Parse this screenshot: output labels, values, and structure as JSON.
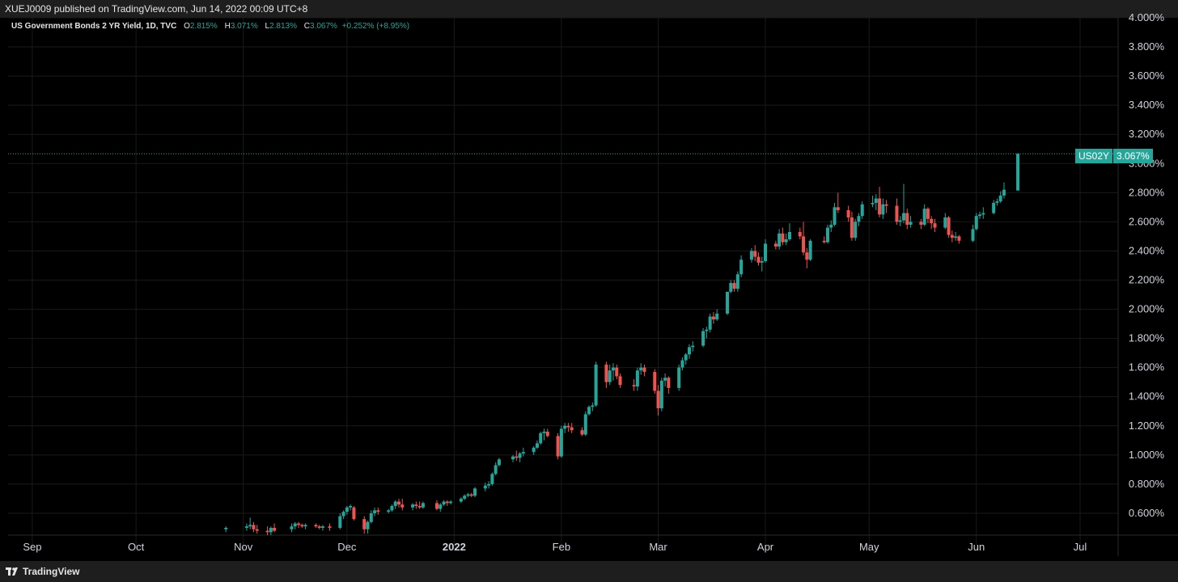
{
  "header": {
    "published": "XUEJ0009 published on TradingView.com, Jun 14, 2022 00:09 UTC+8"
  },
  "legend": {
    "title": "US Government Bonds 2 YR Yield, 1D, TVC",
    "open_label": "O",
    "open": "2.815%",
    "high_label": "H",
    "high": "3.071%",
    "low_label": "L",
    "low": "2.813%",
    "close_label": "C",
    "close": "3.067%",
    "change": "+0.252% (+8.95%)"
  },
  "price_tag": {
    "symbol": "US02Y",
    "value": "3.067%"
  },
  "footer": {
    "brand": "TradingView"
  },
  "colors": {
    "up": "#26a69a",
    "down": "#ef5350",
    "background": "#000000",
    "grid": "#1a1a1a"
  },
  "chart_data": {
    "type": "candlestick",
    "y_unit": "%",
    "ylim": [
      0.45,
      4.0
    ],
    "y_ticks": [
      "0.600%",
      "0.800%",
      "1.000%",
      "1.200%",
      "1.400%",
      "1.600%",
      "1.800%",
      "2.000%",
      "2.200%",
      "2.400%",
      "2.600%",
      "2.800%",
      "3.000%",
      "3.200%",
      "3.400%",
      "3.600%",
      "3.800%",
      "4.000%"
    ],
    "x_ticks": [
      "Sep",
      "Oct",
      "Nov",
      "Dec",
      "2022",
      "Feb",
      "Mar",
      "Apr",
      "May",
      "Jun",
      "Jul"
    ],
    "x_range": [
      "2021-08-25",
      "2022-07-12"
    ],
    "last_price": 3.067,
    "grid": true,
    "candles": [
      {
        "date": "2021-10-27",
        "o": 0.49,
        "h": 0.51,
        "l": 0.47,
        "c": 0.5
      },
      {
        "date": "2021-11-02",
        "o": 0.5,
        "h": 0.53,
        "l": 0.48,
        "c": 0.51
      },
      {
        "date": "2021-11-03",
        "o": 0.51,
        "h": 0.57,
        "l": 0.49,
        "c": 0.52
      },
      {
        "date": "2021-11-04",
        "o": 0.52,
        "h": 0.54,
        "l": 0.47,
        "c": 0.49
      },
      {
        "date": "2021-11-05",
        "o": 0.49,
        "h": 0.52,
        "l": 0.46,
        "c": 0.48
      },
      {
        "date": "2021-11-08",
        "o": 0.48,
        "h": 0.51,
        "l": 0.45,
        "c": 0.47
      },
      {
        "date": "2021-11-09",
        "o": 0.47,
        "h": 0.51,
        "l": 0.44,
        "c": 0.5
      },
      {
        "date": "2021-11-10",
        "o": 0.5,
        "h": 0.53,
        "l": 0.47,
        "c": 0.48
      },
      {
        "date": "2021-11-15",
        "o": 0.49,
        "h": 0.53,
        "l": 0.47,
        "c": 0.51
      },
      {
        "date": "2021-11-16",
        "o": 0.51,
        "h": 0.54,
        "l": 0.49,
        "c": 0.53
      },
      {
        "date": "2021-11-17",
        "o": 0.53,
        "h": 0.54,
        "l": 0.5,
        "c": 0.52
      },
      {
        "date": "2021-11-18",
        "o": 0.52,
        "h": 0.53,
        "l": 0.5,
        "c": 0.51
      },
      {
        "date": "2021-11-19",
        "o": 0.51,
        "h": 0.53,
        "l": 0.49,
        "c": 0.52
      },
      {
        "date": "2021-11-22",
        "o": 0.52,
        "h": 0.53,
        "l": 0.5,
        "c": 0.51
      },
      {
        "date": "2021-11-23",
        "o": 0.51,
        "h": 0.52,
        "l": 0.49,
        "c": 0.5
      },
      {
        "date": "2021-11-24",
        "o": 0.5,
        "h": 0.52,
        "l": 0.48,
        "c": 0.51
      },
      {
        "date": "2021-11-26",
        "o": 0.51,
        "h": 0.53,
        "l": 0.48,
        "c": 0.5
      },
      {
        "date": "2021-11-29",
        "o": 0.5,
        "h": 0.6,
        "l": 0.49,
        "c": 0.58
      },
      {
        "date": "2021-11-30",
        "o": 0.58,
        "h": 0.62,
        "l": 0.56,
        "c": 0.61
      },
      {
        "date": "2021-12-01",
        "o": 0.61,
        "h": 0.65,
        "l": 0.59,
        "c": 0.64
      },
      {
        "date": "2021-12-02",
        "o": 0.64,
        "h": 0.66,
        "l": 0.62,
        "c": 0.65
      },
      {
        "date": "2021-12-03",
        "o": 0.64,
        "h": 0.65,
        "l": 0.55,
        "c": 0.56
      },
      {
        "date": "2021-12-06",
        "o": 0.56,
        "h": 0.58,
        "l": 0.46,
        "c": 0.49
      },
      {
        "date": "2021-12-07",
        "o": 0.49,
        "h": 0.55,
        "l": 0.46,
        "c": 0.54
      },
      {
        "date": "2021-12-08",
        "o": 0.54,
        "h": 0.62,
        "l": 0.53,
        "c": 0.6
      },
      {
        "date": "2021-12-09",
        "o": 0.6,
        "h": 0.64,
        "l": 0.58,
        "c": 0.62
      },
      {
        "date": "2021-12-10",
        "o": 0.62,
        "h": 0.64,
        "l": 0.59,
        "c": 0.61
      },
      {
        "date": "2021-12-13",
        "o": 0.61,
        "h": 0.63,
        "l": 0.6,
        "c": 0.62
      },
      {
        "date": "2021-12-14",
        "o": 0.62,
        "h": 0.66,
        "l": 0.61,
        "c": 0.65
      },
      {
        "date": "2021-12-15",
        "o": 0.65,
        "h": 0.69,
        "l": 0.63,
        "c": 0.68
      },
      {
        "date": "2021-12-16",
        "o": 0.68,
        "h": 0.7,
        "l": 0.64,
        "c": 0.66
      },
      {
        "date": "2021-12-17",
        "o": 0.66,
        "h": 0.7,
        "l": 0.62,
        "c": 0.64
      },
      {
        "date": "2021-12-20",
        "o": 0.64,
        "h": 0.67,
        "l": 0.62,
        "c": 0.66
      },
      {
        "date": "2021-12-21",
        "o": 0.66,
        "h": 0.68,
        "l": 0.63,
        "c": 0.65
      },
      {
        "date": "2021-12-22",
        "o": 0.65,
        "h": 0.68,
        "l": 0.63,
        "c": 0.64
      },
      {
        "date": "2021-12-23",
        "o": 0.64,
        "h": 0.68,
        "l": 0.63,
        "c": 0.67
      },
      {
        "date": "2021-12-27",
        "o": 0.67,
        "h": 0.69,
        "l": 0.62,
        "c": 0.63
      },
      {
        "date": "2021-12-28",
        "o": 0.63,
        "h": 0.67,
        "l": 0.61,
        "c": 0.66
      },
      {
        "date": "2021-12-29",
        "o": 0.66,
        "h": 0.69,
        "l": 0.65,
        "c": 0.68
      },
      {
        "date": "2021-12-30",
        "o": 0.68,
        "h": 0.69,
        "l": 0.65,
        "c": 0.67
      },
      {
        "date": "2021-12-31",
        "o": 0.67,
        "h": 0.69,
        "l": 0.66,
        "c": 0.68
      },
      {
        "date": "2022-01-03",
        "o": 0.68,
        "h": 0.71,
        "l": 0.67,
        "c": 0.7
      },
      {
        "date": "2022-01-04",
        "o": 0.7,
        "h": 0.73,
        "l": 0.69,
        "c": 0.72
      },
      {
        "date": "2022-01-05",
        "o": 0.72,
        "h": 0.74,
        "l": 0.71,
        "c": 0.73
      },
      {
        "date": "2022-01-06",
        "o": 0.73,
        "h": 0.74,
        "l": 0.71,
        "c": 0.72
      },
      {
        "date": "2022-01-07",
        "o": 0.72,
        "h": 0.78,
        "l": 0.71,
        "c": 0.77
      },
      {
        "date": "2022-01-10",
        "o": 0.77,
        "h": 0.81,
        "l": 0.75,
        "c": 0.79
      },
      {
        "date": "2022-01-11",
        "o": 0.79,
        "h": 0.82,
        "l": 0.77,
        "c": 0.8
      },
      {
        "date": "2022-01-12",
        "o": 0.8,
        "h": 0.88,
        "l": 0.79,
        "c": 0.87
      },
      {
        "date": "2022-01-13",
        "o": 0.87,
        "h": 0.95,
        "l": 0.86,
        "c": 0.93
      },
      {
        "date": "2022-01-14",
        "o": 0.93,
        "h": 0.98,
        "l": 0.92,
        "c": 0.97
      },
      {
        "date": "2022-01-18",
        "o": 0.97,
        "h": 1.0,
        "l": 0.95,
        "c": 0.99
      },
      {
        "date": "2022-01-19",
        "o": 0.99,
        "h": 1.03,
        "l": 0.96,
        "c": 0.98
      },
      {
        "date": "2022-01-20",
        "o": 0.98,
        "h": 1.02,
        "l": 0.95,
        "c": 1.01
      },
      {
        "date": "2022-01-21",
        "o": 1.01,
        "h": 1.05,
        "l": 0.99,
        "c": 1.02
      },
      {
        "date": "2022-01-24",
        "o": 1.02,
        "h": 1.06,
        "l": 1.0,
        "c": 1.05
      },
      {
        "date": "2022-01-25",
        "o": 1.05,
        "h": 1.1,
        "l": 1.04,
        "c": 1.08
      },
      {
        "date": "2022-01-26",
        "o": 1.08,
        "h": 1.16,
        "l": 1.07,
        "c": 1.15
      },
      {
        "date": "2022-01-27",
        "o": 1.15,
        "h": 1.18,
        "l": 1.1,
        "c": 1.16
      },
      {
        "date": "2022-01-28",
        "o": 1.16,
        "h": 1.18,
        "l": 1.12,
        "c": 1.13
      },
      {
        "date": "2022-01-31",
        "o": 1.13,
        "h": 1.15,
        "l": 0.97,
        "c": 0.99
      },
      {
        "date": "2022-02-01",
        "o": 0.99,
        "h": 1.2,
        "l": 0.98,
        "c": 1.18
      },
      {
        "date": "2022-02-02",
        "o": 1.18,
        "h": 1.22,
        "l": 1.15,
        "c": 1.2
      },
      {
        "date": "2022-02-03",
        "o": 1.2,
        "h": 1.22,
        "l": 1.16,
        "c": 1.19
      },
      {
        "date": "2022-02-04",
        "o": 1.19,
        "h": 1.22,
        "l": 1.15,
        "c": 1.17
      },
      {
        "date": "2022-02-07",
        "o": 1.17,
        "h": 1.19,
        "l": 1.13,
        "c": 1.14
      },
      {
        "date": "2022-02-08",
        "o": 1.14,
        "h": 1.3,
        "l": 1.13,
        "c": 1.28
      },
      {
        "date": "2022-02-09",
        "o": 1.28,
        "h": 1.34,
        "l": 1.27,
        "c": 1.33
      },
      {
        "date": "2022-02-10",
        "o": 1.33,
        "h": 1.36,
        "l": 1.3,
        "c": 1.34
      },
      {
        "date": "2022-02-11",
        "o": 1.34,
        "h": 1.64,
        "l": 1.33,
        "c": 1.62
      },
      {
        "date": "2022-02-14",
        "o": 1.62,
        "h": 1.64,
        "l": 1.46,
        "c": 1.5
      },
      {
        "date": "2022-02-15",
        "o": 1.5,
        "h": 1.62,
        "l": 1.48,
        "c": 1.58
      },
      {
        "date": "2022-02-16",
        "o": 1.58,
        "h": 1.63,
        "l": 1.51,
        "c": 1.6
      },
      {
        "date": "2022-02-17",
        "o": 1.6,
        "h": 1.62,
        "l": 1.52,
        "c": 1.54
      },
      {
        "date": "2022-02-18",
        "o": 1.54,
        "h": 1.56,
        "l": 1.46,
        "c": 1.48
      },
      {
        "date": "2022-02-22",
        "o": 1.48,
        "h": 1.52,
        "l": 1.44,
        "c": 1.47
      },
      {
        "date": "2022-02-23",
        "o": 1.47,
        "h": 1.6,
        "l": 1.44,
        "c": 1.58
      },
      {
        "date": "2022-02-24",
        "o": 1.58,
        "h": 1.63,
        "l": 1.55,
        "c": 1.6
      },
      {
        "date": "2022-02-25",
        "o": 1.6,
        "h": 1.62,
        "l": 1.54,
        "c": 1.57
      },
      {
        "date": "2022-02-28",
        "o": 1.57,
        "h": 1.59,
        "l": 1.42,
        "c": 1.44
      },
      {
        "date": "2022-03-01",
        "o": 1.44,
        "h": 1.48,
        "l": 1.27,
        "c": 1.32
      },
      {
        "date": "2022-03-02",
        "o": 1.32,
        "h": 1.53,
        "l": 1.3,
        "c": 1.51
      },
      {
        "date": "2022-03-03",
        "o": 1.51,
        "h": 1.56,
        "l": 1.47,
        "c": 1.53
      },
      {
        "date": "2022-03-04",
        "o": 1.53,
        "h": 1.54,
        "l": 1.42,
        "c": 1.46
      },
      {
        "date": "2022-03-07",
        "o": 1.46,
        "h": 1.62,
        "l": 1.44,
        "c": 1.6
      },
      {
        "date": "2022-03-08",
        "o": 1.6,
        "h": 1.67,
        "l": 1.58,
        "c": 1.65
      },
      {
        "date": "2022-03-09",
        "o": 1.65,
        "h": 1.7,
        "l": 1.62,
        "c": 1.69
      },
      {
        "date": "2022-03-10",
        "o": 1.69,
        "h": 1.76,
        "l": 1.66,
        "c": 1.74
      },
      {
        "date": "2022-03-11",
        "o": 1.74,
        "h": 1.78,
        "l": 1.71,
        "c": 1.75
      },
      {
        "date": "2022-03-14",
        "o": 1.75,
        "h": 1.87,
        "l": 1.74,
        "c": 1.85
      },
      {
        "date": "2022-03-15",
        "o": 1.85,
        "h": 1.88,
        "l": 1.8,
        "c": 1.86
      },
      {
        "date": "2022-03-16",
        "o": 1.86,
        "h": 1.97,
        "l": 1.84,
        "c": 1.95
      },
      {
        "date": "2022-03-17",
        "o": 1.95,
        "h": 1.98,
        "l": 1.9,
        "c": 1.93
      },
      {
        "date": "2022-03-18",
        "o": 1.93,
        "h": 2.0,
        "l": 1.92,
        "c": 1.97
      },
      {
        "date": "2022-03-21",
        "o": 1.97,
        "h": 2.12,
        "l": 1.96,
        "c": 2.12
      },
      {
        "date": "2022-03-22",
        "o": 2.12,
        "h": 2.2,
        "l": 2.11,
        "c": 2.18
      },
      {
        "date": "2022-03-23",
        "o": 2.18,
        "h": 2.2,
        "l": 2.12,
        "c": 2.14
      },
      {
        "date": "2022-03-24",
        "o": 2.14,
        "h": 2.26,
        "l": 2.12,
        "c": 2.24
      },
      {
        "date": "2022-03-25",
        "o": 2.24,
        "h": 2.37,
        "l": 2.22,
        "c": 2.34
      },
      {
        "date": "2022-03-28",
        "o": 2.34,
        "h": 2.42,
        "l": 2.32,
        "c": 2.4
      },
      {
        "date": "2022-03-29",
        "o": 2.4,
        "h": 2.44,
        "l": 2.33,
        "c": 2.36
      },
      {
        "date": "2022-03-30",
        "o": 2.36,
        "h": 2.39,
        "l": 2.3,
        "c": 2.32
      },
      {
        "date": "2022-03-31",
        "o": 2.32,
        "h": 2.36,
        "l": 2.26,
        "c": 2.33
      },
      {
        "date": "2022-04-01",
        "o": 2.33,
        "h": 2.48,
        "l": 2.32,
        "c": 2.45
      },
      {
        "date": "2022-04-04",
        "o": 2.45,
        "h": 2.47,
        "l": 2.41,
        "c": 2.43
      },
      {
        "date": "2022-04-05",
        "o": 2.43,
        "h": 2.55,
        "l": 2.41,
        "c": 2.52
      },
      {
        "date": "2022-04-06",
        "o": 2.52,
        "h": 2.56,
        "l": 2.44,
        "c": 2.46
      },
      {
        "date": "2022-04-07",
        "o": 2.46,
        "h": 2.52,
        "l": 2.44,
        "c": 2.48
      },
      {
        "date": "2022-04-08",
        "o": 2.48,
        "h": 2.59,
        "l": 2.47,
        "c": 2.53
      },
      {
        "date": "2022-04-11",
        "o": 2.53,
        "h": 2.56,
        "l": 2.48,
        "c": 2.5
      },
      {
        "date": "2022-04-12",
        "o": 2.5,
        "h": 2.6,
        "l": 2.37,
        "c": 2.39
      },
      {
        "date": "2022-04-13",
        "o": 2.39,
        "h": 2.42,
        "l": 2.28,
        "c": 2.34
      },
      {
        "date": "2022-04-14",
        "o": 2.34,
        "h": 2.48,
        "l": 2.33,
        "c": 2.47
      },
      {
        "date": "2022-04-18",
        "o": 2.47,
        "h": 2.5,
        "l": 2.45,
        "c": 2.46
      },
      {
        "date": "2022-04-19",
        "o": 2.46,
        "h": 2.58,
        "l": 2.45,
        "c": 2.56
      },
      {
        "date": "2022-04-20",
        "o": 2.56,
        "h": 2.61,
        "l": 2.53,
        "c": 2.58
      },
      {
        "date": "2022-04-21",
        "o": 2.58,
        "h": 2.73,
        "l": 2.57,
        "c": 2.7
      },
      {
        "date": "2022-04-22",
        "o": 2.7,
        "h": 2.8,
        "l": 2.66,
        "c": 2.68
      },
      {
        "date": "2022-04-25",
        "o": 2.68,
        "h": 2.71,
        "l": 2.6,
        "c": 2.63
      },
      {
        "date": "2022-04-26",
        "o": 2.63,
        "h": 2.67,
        "l": 2.47,
        "c": 2.49
      },
      {
        "date": "2022-04-27",
        "o": 2.49,
        "h": 2.62,
        "l": 2.47,
        "c": 2.6
      },
      {
        "date": "2022-04-28",
        "o": 2.6,
        "h": 2.66,
        "l": 2.57,
        "c": 2.64
      },
      {
        "date": "2022-04-29",
        "o": 2.64,
        "h": 2.74,
        "l": 2.62,
        "c": 2.72
      },
      {
        "date": "2022-05-02",
        "o": 2.72,
        "h": 2.78,
        "l": 2.7,
        "c": 2.73
      },
      {
        "date": "2022-05-03",
        "o": 2.73,
        "h": 2.79,
        "l": 2.68,
        "c": 2.76
      },
      {
        "date": "2022-05-04",
        "o": 2.76,
        "h": 2.84,
        "l": 2.63,
        "c": 2.65
      },
      {
        "date": "2022-05-05",
        "o": 2.65,
        "h": 2.76,
        "l": 2.62,
        "c": 2.72
      },
      {
        "date": "2022-05-06",
        "o": 2.72,
        "h": 2.75,
        "l": 2.66,
        "c": 2.71
      },
      {
        "date": "2022-05-09",
        "o": 2.71,
        "h": 2.76,
        "l": 2.58,
        "c": 2.6
      },
      {
        "date": "2022-05-10",
        "o": 2.6,
        "h": 2.64,
        "l": 2.57,
        "c": 2.61
      },
      {
        "date": "2022-05-11",
        "o": 2.61,
        "h": 2.86,
        "l": 2.59,
        "c": 2.66
      },
      {
        "date": "2022-05-12",
        "o": 2.66,
        "h": 2.69,
        "l": 2.55,
        "c": 2.58
      },
      {
        "date": "2022-05-13",
        "o": 2.58,
        "h": 2.64,
        "l": 2.56,
        "c": 2.6
      },
      {
        "date": "2022-05-16",
        "o": 2.6,
        "h": 2.62,
        "l": 2.55,
        "c": 2.58
      },
      {
        "date": "2022-05-17",
        "o": 2.58,
        "h": 2.72,
        "l": 2.57,
        "c": 2.69
      },
      {
        "date": "2022-05-18",
        "o": 2.69,
        "h": 2.7,
        "l": 2.59,
        "c": 2.62
      },
      {
        "date": "2022-05-19",
        "o": 2.62,
        "h": 2.64,
        "l": 2.55,
        "c": 2.59
      },
      {
        "date": "2022-05-20",
        "o": 2.59,
        "h": 2.62,
        "l": 2.53,
        "c": 2.56
      },
      {
        "date": "2022-05-23",
        "o": 2.56,
        "h": 2.66,
        "l": 2.55,
        "c": 2.63
      },
      {
        "date": "2022-05-24",
        "o": 2.63,
        "h": 2.64,
        "l": 2.49,
        "c": 2.51
      },
      {
        "date": "2022-05-25",
        "o": 2.51,
        "h": 2.54,
        "l": 2.46,
        "c": 2.49
      },
      {
        "date": "2022-05-26",
        "o": 2.49,
        "h": 2.53,
        "l": 2.47,
        "c": 2.5
      },
      {
        "date": "2022-05-27",
        "o": 2.5,
        "h": 2.51,
        "l": 2.45,
        "c": 2.47
      },
      {
        "date": "2022-05-31",
        "o": 2.47,
        "h": 2.58,
        "l": 2.46,
        "c": 2.55
      },
      {
        "date": "2022-06-01",
        "o": 2.55,
        "h": 2.66,
        "l": 2.54,
        "c": 2.64
      },
      {
        "date": "2022-06-02",
        "o": 2.64,
        "h": 2.67,
        "l": 2.62,
        "c": 2.65
      },
      {
        "date": "2022-06-03",
        "o": 2.65,
        "h": 2.7,
        "l": 2.62,
        "c": 2.66
      },
      {
        "date": "2022-06-06",
        "o": 2.66,
        "h": 2.75,
        "l": 2.65,
        "c": 2.73
      },
      {
        "date": "2022-06-07",
        "o": 2.73,
        "h": 2.76,
        "l": 2.71,
        "c": 2.74
      },
      {
        "date": "2022-06-08",
        "o": 2.74,
        "h": 2.81,
        "l": 2.73,
        "c": 2.78
      },
      {
        "date": "2022-06-09",
        "o": 2.78,
        "h": 2.87,
        "l": 2.76,
        "c": 2.82
      },
      {
        "date": "2022-06-13",
        "o": 2.815,
        "h": 3.071,
        "l": 2.813,
        "c": 3.067
      }
    ]
  }
}
